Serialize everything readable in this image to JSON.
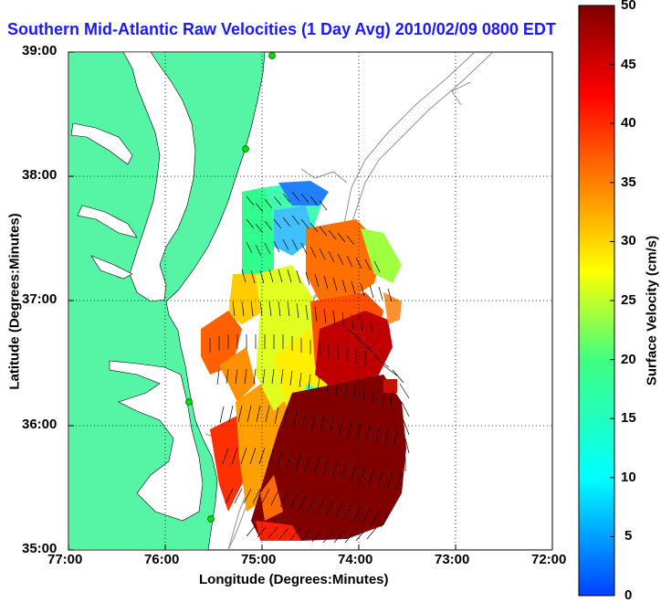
{
  "title": "Southern Mid-Atlantic Raw Velocities (1 Day Avg) 2010/02/09 0800 EDT",
  "x_axis": {
    "label": "Longitude (Degrees:Minutes)",
    "ticks": [
      "77:00",
      "76:00",
      "75:00",
      "74:00",
      "73:00",
      "72:00"
    ]
  },
  "y_axis": {
    "label": "Latitude (Degrees:Minutes)",
    "ticks": [
      "39:00",
      "38:00",
      "37:00",
      "36:00",
      "35:00"
    ]
  },
  "colorbar": {
    "label": "Surface Velocity (cm/s)",
    "ticks": [
      "50",
      "45",
      "40",
      "35",
      "30",
      "25",
      "20",
      "15",
      "10",
      "5",
      "0"
    ],
    "min": 0,
    "max": 50
  },
  "map_data": {
    "type": "velocity field",
    "lon_range": [
      -77,
      -72
    ],
    "lat_range": [
      35,
      39
    ],
    "land_color": "#55f5a5",
    "grid": "dotted"
  }
}
